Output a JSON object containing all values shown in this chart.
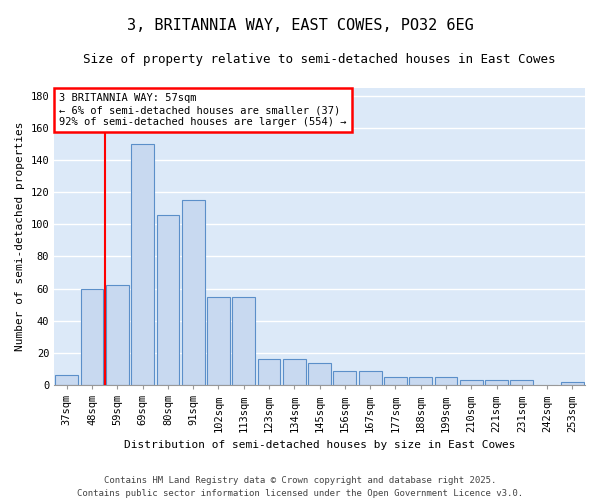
{
  "title": "3, BRITANNIA WAY, EAST COWES, PO32 6EG",
  "subtitle": "Size of property relative to semi-detached houses in East Cowes",
  "xlabel": "Distribution of semi-detached houses by size in East Cowes",
  "ylabel": "Number of semi-detached properties",
  "categories": [
    "37sqm",
    "48sqm",
    "59sqm",
    "69sqm",
    "80sqm",
    "91sqm",
    "102sqm",
    "113sqm",
    "123sqm",
    "134sqm",
    "145sqm",
    "156sqm",
    "167sqm",
    "177sqm",
    "188sqm",
    "199sqm",
    "210sqm",
    "221sqm",
    "231sqm",
    "242sqm",
    "253sqm"
  ],
  "values": [
    6,
    60,
    62,
    150,
    106,
    115,
    55,
    55,
    16,
    16,
    14,
    9,
    9,
    5,
    5,
    5,
    3,
    3,
    3,
    0,
    2
  ],
  "bar_color": "#c8d9f0",
  "bar_edge_color": "#5b8fc9",
  "property_line_x": 1.5,
  "pct_smaller": "6%",
  "n_smaller": 37,
  "pct_larger": "92%",
  "n_larger": 554,
  "vline_color": "red",
  "ylim": [
    0,
    185
  ],
  "yticks": [
    0,
    20,
    40,
    60,
    80,
    100,
    120,
    140,
    160,
    180
  ],
  "footer_line1": "Contains HM Land Registry data © Crown copyright and database right 2025.",
  "footer_line2": "Contains public sector information licensed under the Open Government Licence v3.0.",
  "plot_bg_color": "#dce9f8",
  "grid_color": "white",
  "fig_bg_color": "#ffffff",
  "title_fontsize": 11,
  "subtitle_fontsize": 9,
  "tick_fontsize": 7.5,
  "footer_fontsize": 6.5
}
